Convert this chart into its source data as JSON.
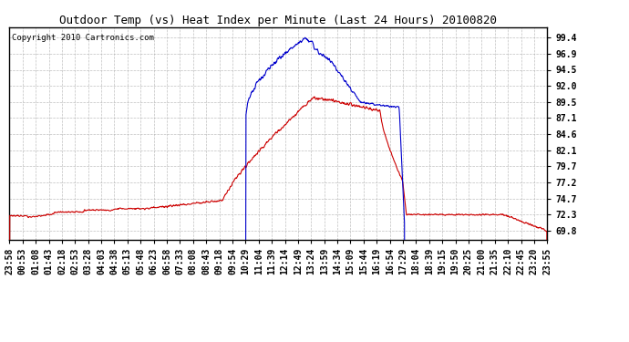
{
  "title": "Outdoor Temp (vs) Heat Index per Minute (Last 24 Hours) 20100820",
  "copyright": "Copyright 2010 Cartronics.com",
  "yticks": [
    69.8,
    72.3,
    74.7,
    77.2,
    79.7,
    82.1,
    84.6,
    87.1,
    89.5,
    92.0,
    94.5,
    96.9,
    99.4
  ],
  "ylim": [
    68.5,
    101.0
  ],
  "bg_color": "#ffffff",
  "grid_color": "#b0b0b0",
  "blue_color": "#0000cc",
  "red_color": "#cc0000",
  "xtick_labels": [
    "23:58",
    "00:53",
    "01:08",
    "01:43",
    "02:18",
    "02:53",
    "03:28",
    "04:03",
    "04:38",
    "05:13",
    "05:48",
    "06:23",
    "06:58",
    "07:33",
    "08:08",
    "08:43",
    "09:18",
    "09:54",
    "10:29",
    "11:04",
    "11:39",
    "12:14",
    "12:49",
    "13:24",
    "13:59",
    "14:34",
    "15:09",
    "15:44",
    "16:19",
    "16:54",
    "17:29",
    "18:04",
    "18:39",
    "19:15",
    "19:50",
    "20:25",
    "21:00",
    "21:35",
    "22:10",
    "22:45",
    "23:20",
    "23:55"
  ],
  "title_fontsize": 9,
  "tick_fontsize": 7,
  "copyright_fontsize": 6.5
}
